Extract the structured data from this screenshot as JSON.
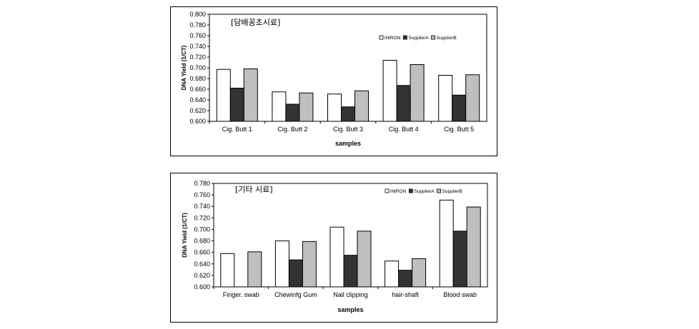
{
  "chart_data": [
    {
      "type": "bar",
      "title": "[담배꽁초시료]",
      "ylabel": "DNA Yield (1/CT)",
      "xlabel": "samples",
      "ylim": [
        0.6,
        0.8
      ],
      "yticks": [
        "0.600",
        "0.620",
        "0.640",
        "0.660",
        "0.680",
        "0.700",
        "0.720",
        "0.740",
        "0.760",
        "0.780",
        "0.800"
      ],
      "categories": [
        "Cig. Butt 1",
        "Cig. Butt 2",
        "Cig. Butt 3",
        "Cig. Butt 4",
        "Cig. Butt 5"
      ],
      "legend_position": "top-right",
      "grid": false,
      "series": [
        {
          "name": "iNtRON",
          "color": "#ffffff",
          "values": [
            0.697,
            0.655,
            0.651,
            0.714,
            0.686
          ]
        },
        {
          "name": "SupplierA",
          "color": "#333333",
          "values": [
            0.662,
            0.632,
            0.627,
            0.667,
            0.649
          ]
        },
        {
          "name": "SupplierB",
          "color": "#bfbfbf",
          "values": [
            0.698,
            0.653,
            0.657,
            0.706,
            0.687
          ]
        }
      ]
    },
    {
      "type": "bar",
      "title": "[기타 시료]",
      "ylabel": "DNA Yield (1/CT)",
      "xlabel": "samples",
      "ylim": [
        0.6,
        0.78
      ],
      "yticks": [
        "0.600",
        "0.620",
        "0.640",
        "0.660",
        "0.680",
        "0.700",
        "0.720",
        "0.740",
        "0.760",
        "0.780"
      ],
      "categories": [
        "Finger. swab",
        "Chewinfg Gum",
        "Nail clipping",
        "hair-shaft",
        "Blood swab"
      ],
      "legend_position": "top-right",
      "grid": false,
      "series": [
        {
          "name": "iNtRON",
          "color": "#ffffff",
          "values": [
            0.658,
            0.68,
            0.704,
            0.645,
            0.751
          ]
        },
        {
          "name": "SupplierA",
          "color": "#333333",
          "values": [
            0.6,
            0.647,
            0.655,
            0.629,
            0.697
          ]
        },
        {
          "name": "SupplierB",
          "color": "#bfbfbf",
          "values": [
            0.661,
            0.679,
            0.697,
            0.649,
            0.739
          ]
        }
      ]
    }
  ]
}
